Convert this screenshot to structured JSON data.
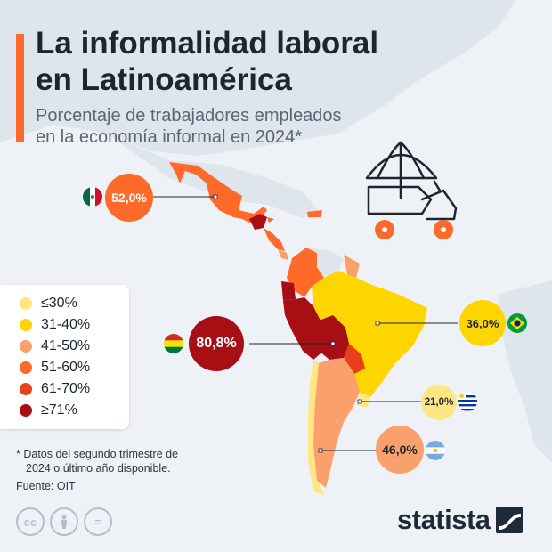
{
  "title": {
    "line1": "La informalidad laboral",
    "line2": "en Latinoamérica"
  },
  "subtitle": {
    "line1": "Porcentaje de trabajadores empleados",
    "line2": "en la economía informal en 2024*"
  },
  "legend": [
    {
      "label": "≤30%",
      "color": "#ffe680"
    },
    {
      "label": "31-40%",
      "color": "#ffd500"
    },
    {
      "label": "41-50%",
      "color": "#f9a06c"
    },
    {
      "label": "51-60%",
      "color": "#ff6a2b"
    },
    {
      "label": "61-70%",
      "color": "#e8401c"
    },
    {
      "label": "≥71%",
      "color": "#a70f14"
    }
  ],
  "callouts": {
    "mexico": {
      "value": "52,0%",
      "flag": "mexico-flag",
      "color": "#ff6a2b"
    },
    "bolivia": {
      "value": "80,8%",
      "flag": "bolivia-flag",
      "color": "#a70f14"
    },
    "brazil": {
      "value": "36,0%",
      "flag": "brazil-flag",
      "color": "#ffd500"
    },
    "uruguay": {
      "value": "21,0%",
      "flag": "uruguay-flag",
      "color": "#ffe680"
    },
    "argentina": {
      "value": "46,0%",
      "flag": "argentina-flag",
      "color": "#f9a06c"
    }
  },
  "footnote": {
    "line1": "* Datos del segundo trimestre de",
    "line2": "2024 o último año disponible."
  },
  "source": "Fuente: OIT",
  "license_icons": [
    "cc-icon",
    "by-person-icon",
    "nd-equals-icon"
  ],
  "brand": {
    "name": "statista"
  },
  "illustration": "street-vendor-cart-icon"
}
